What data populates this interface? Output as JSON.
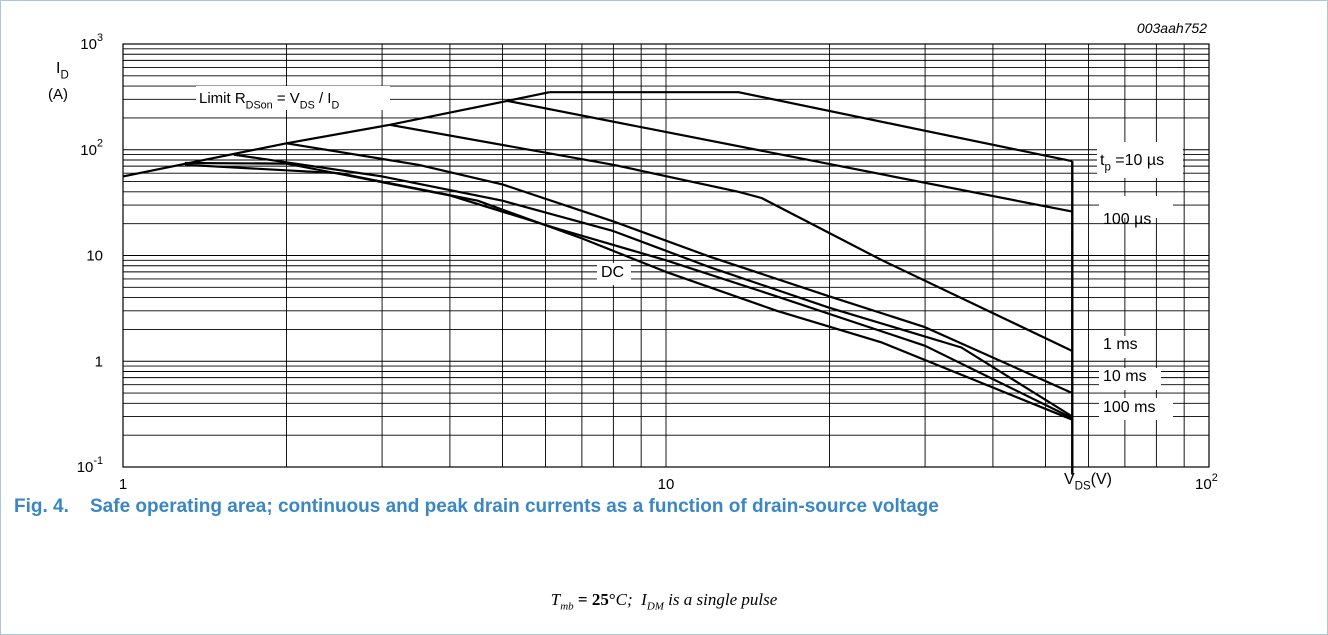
{
  "chart_data": {
    "type": "line",
    "title": "",
    "code": "003aah752",
    "x_scale": "log",
    "y_scale": "log",
    "xlim": [
      1,
      100
    ],
    "ylim": [
      0.1,
      1000
    ],
    "grid": true,
    "x_ticks": [
      {
        "value": 1,
        "base": "1",
        "exp": ""
      },
      {
        "value": 10,
        "base": "10",
        "exp": ""
      },
      {
        "value": 100,
        "base": "10",
        "exp": "2"
      }
    ],
    "y_ticks": [
      {
        "value": 0.1,
        "base": "10",
        "exp": "-1"
      },
      {
        "value": 1,
        "base": "1",
        "exp": ""
      },
      {
        "value": 10,
        "base": "10",
        "exp": ""
      },
      {
        "value": 100,
        "base": "10",
        "exp": "2"
      },
      {
        "value": 1000,
        "base": "10",
        "exp": "3"
      }
    ],
    "xlabel": {
      "main": "V",
      "sub": "DS",
      "unit": "(V)"
    },
    "ylabel": {
      "main": "I",
      "sub": "D",
      "unit": "(A)"
    },
    "limit_line": {
      "x": [
        1,
        2,
        3.1,
        5.1,
        6.1
      ],
      "y": [
        56,
        115,
        172,
        290,
        350
      ]
    },
    "limit_label": {
      "text": "Limit R",
      "sub1": "DSon",
      "eq": " = V",
      "sub2": "DS",
      "slash": " / I",
      "sub3": "D"
    },
    "vertical_limit": {
      "x": 56,
      "y": [
        0.085,
        78
      ]
    },
    "series": [
      {
        "name": "tp = 10 µs",
        "x": [
          6.1,
          13.6,
          56
        ],
        "y": [
          350,
          350,
          78
        ]
      },
      {
        "name": "100 µs",
        "x": [
          5.1,
          56
        ],
        "y": [
          290,
          26
        ]
      },
      {
        "name": "1 ms",
        "x": [
          3.1,
          8,
          13.6,
          15,
          25,
          56
        ],
        "y": [
          172,
          72,
          40,
          35,
          9,
          1.25
        ]
      },
      {
        "name": "10 ms",
        "x": [
          2,
          3.5,
          5,
          8,
          12,
          20,
          30,
          56
        ],
        "y": [
          115,
          72,
          47,
          21,
          9.8,
          4.1,
          2.1,
          0.5
        ]
      },
      {
        "name": "100 ms",
        "x": [
          1.6,
          3,
          5,
          8,
          12,
          20,
          35,
          56
        ],
        "y": [
          90,
          56,
          33,
          17,
          7.8,
          3.2,
          1.35,
          0.3
        ]
      },
      {
        "name": "DC",
        "x": [
          1.3,
          2,
          4,
          6.3,
          10,
          16,
          30,
          56
        ],
        "y": [
          75,
          74,
          37,
          18,
          9,
          4.1,
          1.4,
          0.29
        ]
      },
      {
        "name": "",
        "x": [
          1.3,
          2.5,
          4.5,
          7,
          10,
          16,
          25,
          56
        ],
        "y": [
          72,
          60,
          33,
          14.5,
          7,
          3,
          1.5,
          0.28
        ]
      }
    ],
    "annotations": [
      {
        "name": "tp",
        "main": "t",
        "sub": "p",
        "rest": " =10 µs"
      },
      {
        "name": "100us",
        "text": "100 µs"
      },
      {
        "name": "1ms",
        "text": "1 ms"
      },
      {
        "name": "10ms",
        "text": "10 ms"
      },
      {
        "name": "100ms",
        "text": "100 ms"
      },
      {
        "name": "dc",
        "text": "DC"
      }
    ]
  },
  "caption": {
    "number": "Fig. 4.",
    "text": "Safe operating area; continuous and peak drain currents as a function of drain-source voltage"
  },
  "conditions": {
    "t_main": "T",
    "t_sub": "mb",
    "eq": " = ",
    "value": "25°",
    "unit": "C;",
    "i_main": "I",
    "i_sub": "DM",
    "rest": " is a single pulse"
  }
}
